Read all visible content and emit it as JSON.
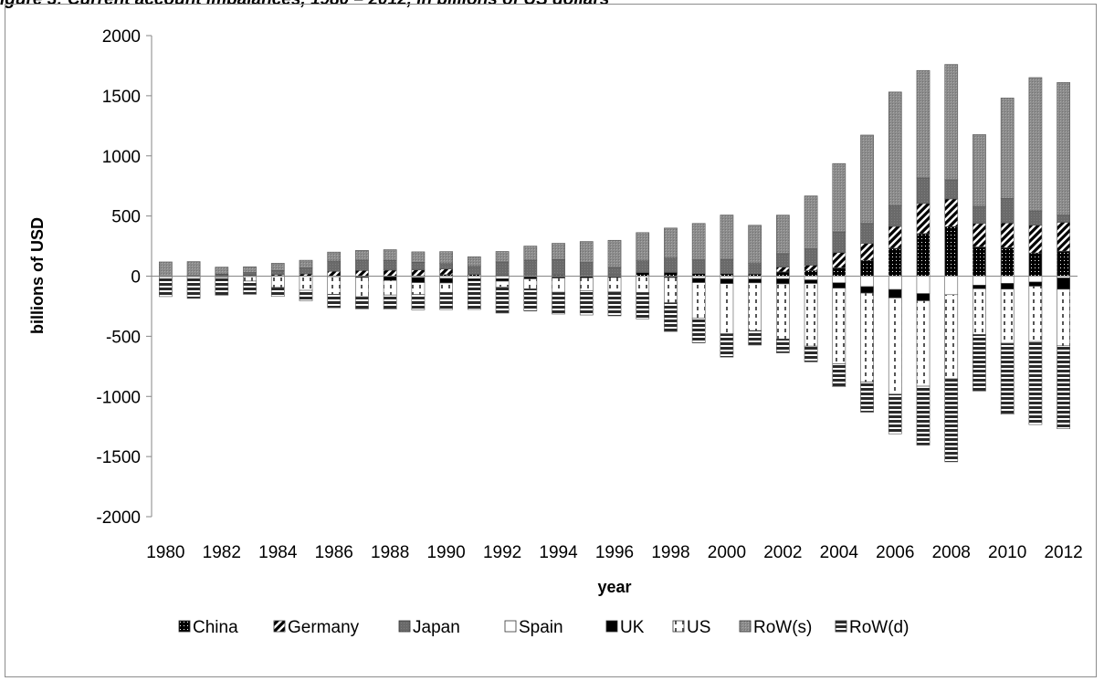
{
  "page": {
    "title_fragment": "igure 3: Current account imbalances, 1980 – 2012, in billions of US dollars"
  },
  "chart_data": {
    "type": "bar",
    "stacked": true,
    "title": "",
    "xlabel": "year",
    "ylabel": "billions of USD",
    "ylim": [
      -2000,
      2000
    ],
    "yticks": [
      -2000,
      -1500,
      -1000,
      -500,
      0,
      500,
      1000,
      1500,
      2000
    ],
    "xtick_labels": [
      "1980",
      "1982",
      "1984",
      "1986",
      "1988",
      "1990",
      "1992",
      "1994",
      "1996",
      "1998",
      "2000",
      "2002",
      "2004",
      "2006",
      "2008",
      "2010",
      "2012"
    ],
    "categories": [
      "1980",
      "1981",
      "1982",
      "1983",
      "1984",
      "1985",
      "1986",
      "1987",
      "1988",
      "1989",
      "1990",
      "1991",
      "1992",
      "1993",
      "1994",
      "1995",
      "1996",
      "1997",
      "1998",
      "1999",
      "2000",
      "2001",
      "2002",
      "2003",
      "2004",
      "2005",
      "2006",
      "2007",
      "2008",
      "2009",
      "2010",
      "2011",
      "2012"
    ],
    "legend_position": "bottom",
    "grid": false,
    "series": [
      {
        "name": "China",
        "fill": "china",
        "values": [
          0,
          0,
          5,
          4,
          2,
          0,
          0,
          0,
          0,
          0,
          12,
          13,
          6,
          0,
          8,
          2,
          7,
          30,
          31,
          21,
          20,
          17,
          35,
          46,
          69,
          132,
          232,
          354,
          412,
          243,
          237,
          193,
          208
        ]
      },
      {
        "name": "Germany",
        "fill": "germany",
        "values": [
          0,
          0,
          5,
          5,
          10,
          18,
          40,
          47,
          50,
          52,
          48,
          0,
          0,
          0,
          0,
          0,
          0,
          0,
          0,
          0,
          0,
          0,
          40,
          45,
          127,
          140,
          182,
          250,
          230,
          195,
          205,
          230,
          240
        ]
      },
      {
        "name": "Japan",
        "fill": "japan",
        "values": [
          0,
          6,
          7,
          21,
          35,
          50,
          85,
          85,
          80,
          63,
          44,
          68,
          112,
          132,
          130,
          111,
          66,
          97,
          119,
          114,
          120,
          88,
          112,
          136,
          172,
          166,
          171,
          212,
          159,
          142,
          204,
          119,
          60
        ]
      },
      {
        "name": "Spain",
        "fill": "spain",
        "values": [
          -5,
          -5,
          -4,
          -3,
          0,
          0,
          0,
          0,
          -4,
          -11,
          -18,
          -21,
          -21,
          -6,
          -6,
          0,
          0,
          0,
          -3,
          -18,
          -23,
          -24,
          -22,
          -31,
          -55,
          -87,
          -111,
          -145,
          -154,
          -75,
          -60,
          -48,
          -15
        ]
      },
      {
        "name": "UK",
        "fill": "uk",
        "values": [
          0,
          0,
          0,
          0,
          0,
          0,
          -4,
          -11,
          -32,
          -43,
          -39,
          -19,
          -21,
          -17,
          -10,
          -14,
          -11,
          0,
          -9,
          -36,
          -39,
          -32,
          -42,
          -30,
          -45,
          -54,
          -70,
          -60,
          0,
          -30,
          -48,
          -36,
          -94
        ]
      },
      {
        "name": "US",
        "fill": "us",
        "values": [
          0,
          0,
          -6,
          -38,
          -94,
          -118,
          -147,
          -161,
          -121,
          -99,
          -79,
          0,
          -48,
          -82,
          -118,
          -109,
          -120,
          -136,
          -209,
          -297,
          -417,
          -397,
          -458,
          -521,
          -629,
          -740,
          -800,
          -710,
          -700,
          -380,
          -450,
          -460,
          -470
        ]
      },
      {
        "name": "RoW(s)",
        "fill": "rows",
        "values": [
          118,
          115,
          58,
          48,
          60,
          64,
          75,
          82,
          90,
          87,
          100,
          80,
          87,
          118,
          135,
          175,
          225,
          235,
          250,
          303,
          368,
          318,
          320,
          440,
          568,
          735,
          946,
          894,
          959,
          597,
          835,
          1109,
          1102
        ]
      },
      {
        "name": "RoW(d)",
        "fill": "rowd",
        "values": [
          -165,
          -180,
          -148,
          -110,
          -75,
          -87,
          -112,
          -100,
          -117,
          -127,
          -142,
          -237,
          -217,
          -185,
          -181,
          -200,
          -199,
          -219,
          -239,
          -204,
          -194,
          -120,
          -116,
          -131,
          -190,
          -250,
          -330,
          -490,
          -690,
          -470,
          -590,
          -690,
          -690
        ]
      }
    ]
  }
}
